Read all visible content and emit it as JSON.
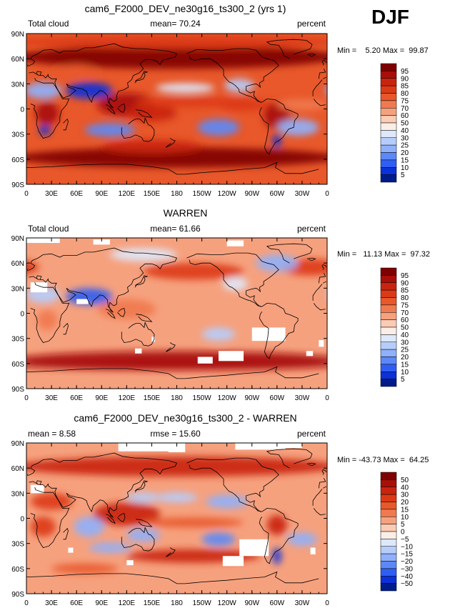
{
  "season": "DJF",
  "units_label": "percent",
  "lon_ticks": [
    "0",
    "30E",
    "60E",
    "90E",
    "120E",
    "150E",
    "180",
    "150W",
    "120W",
    "90W",
    "60W",
    "30W",
    "0"
  ],
  "lat_ticks": [
    "90N",
    "60N",
    "30N",
    "0",
    "30S",
    "60S",
    "90S"
  ],
  "chart_data": [
    {
      "type": "heatmap",
      "title": "cam6_F2000_DEV_ne30g16_ts300_2 (yrs 1)",
      "left_label": "Total cloud",
      "center_label": "mean=  70.24",
      "right_label": "percent",
      "minmax_label": "Min =    5.20 Max =  99.87",
      "min": 5.2,
      "max": 99.87,
      "mean": 70.24,
      "xrange": [
        0,
        360
      ],
      "yrange": [
        -90,
        90
      ],
      "colorbar_levels": [
        "95",
        "90",
        "85",
        "80",
        "75",
        "70",
        "60",
        "50",
        "40",
        "30",
        "25",
        "20",
        "15",
        "10",
        "5"
      ],
      "colorbar_colors": [
        "#7f0000",
        "#a80f08",
        "#c9240f",
        "#dc3a16",
        "#e8582a",
        "#f07a4f",
        "#f6a17e",
        "#fbcbb4",
        "#fbeee6",
        "#dde8fb",
        "#b6cdfb",
        "#8fb0fb",
        "#5c89f7",
        "#2f5ef2",
        "#0b31d9",
        "#001c8a"
      ]
    },
    {
      "type": "heatmap",
      "title": "WARREN",
      "left_label": "Total cloud",
      "center_label": "mean=  61.66",
      "right_label": "percent",
      "minmax_label": "Min =   11.13 Max =  97.32",
      "min": 11.13,
      "max": 97.32,
      "mean": 61.66,
      "xrange": [
        0,
        360
      ],
      "yrange": [
        -90,
        90
      ],
      "colorbar_levels": [
        "95",
        "90",
        "85",
        "80",
        "75",
        "70",
        "60",
        "50",
        "40",
        "30",
        "25",
        "20",
        "15",
        "10",
        "5"
      ],
      "colorbar_colors": [
        "#7f0000",
        "#a80f08",
        "#c9240f",
        "#dc3a16",
        "#e8582a",
        "#f07a4f",
        "#f6a17e",
        "#fbcbb4",
        "#fbeee6",
        "#dde8fb",
        "#b6cdfb",
        "#8fb0fb",
        "#5c89f7",
        "#2f5ef2",
        "#0b31d9",
        "#001c8a"
      ]
    },
    {
      "type": "heatmap",
      "title": "cam6_F2000_DEV_ne30g16_ts300_2 - WARREN",
      "left_label": "mean =    8.58",
      "center_label": "rmse =   15.60",
      "right_label": "percent",
      "minmax_label": "Min = -43.73 Max =  64.25",
      "min": -43.73,
      "max": 64.25,
      "mean": 8.58,
      "rmse": 15.6,
      "xrange": [
        0,
        360
      ],
      "yrange": [
        -90,
        90
      ],
      "colorbar_levels": [
        "50",
        "40",
        "30",
        "20",
        "15",
        "10",
        "5",
        "0",
        "−5",
        "−10",
        "−15",
        "−20",
        "−30",
        "−40",
        "−50"
      ],
      "colorbar_colors": [
        "#7f0000",
        "#a80f08",
        "#c9240f",
        "#dc3a16",
        "#e8582a",
        "#f07a4f",
        "#f6a17e",
        "#fbcbb4",
        "#fbeee6",
        "#dde8fb",
        "#b6cdfb",
        "#8fb0fb",
        "#5c89f7",
        "#2f5ef2",
        "#0b31d9",
        "#001c8a"
      ]
    }
  ]
}
